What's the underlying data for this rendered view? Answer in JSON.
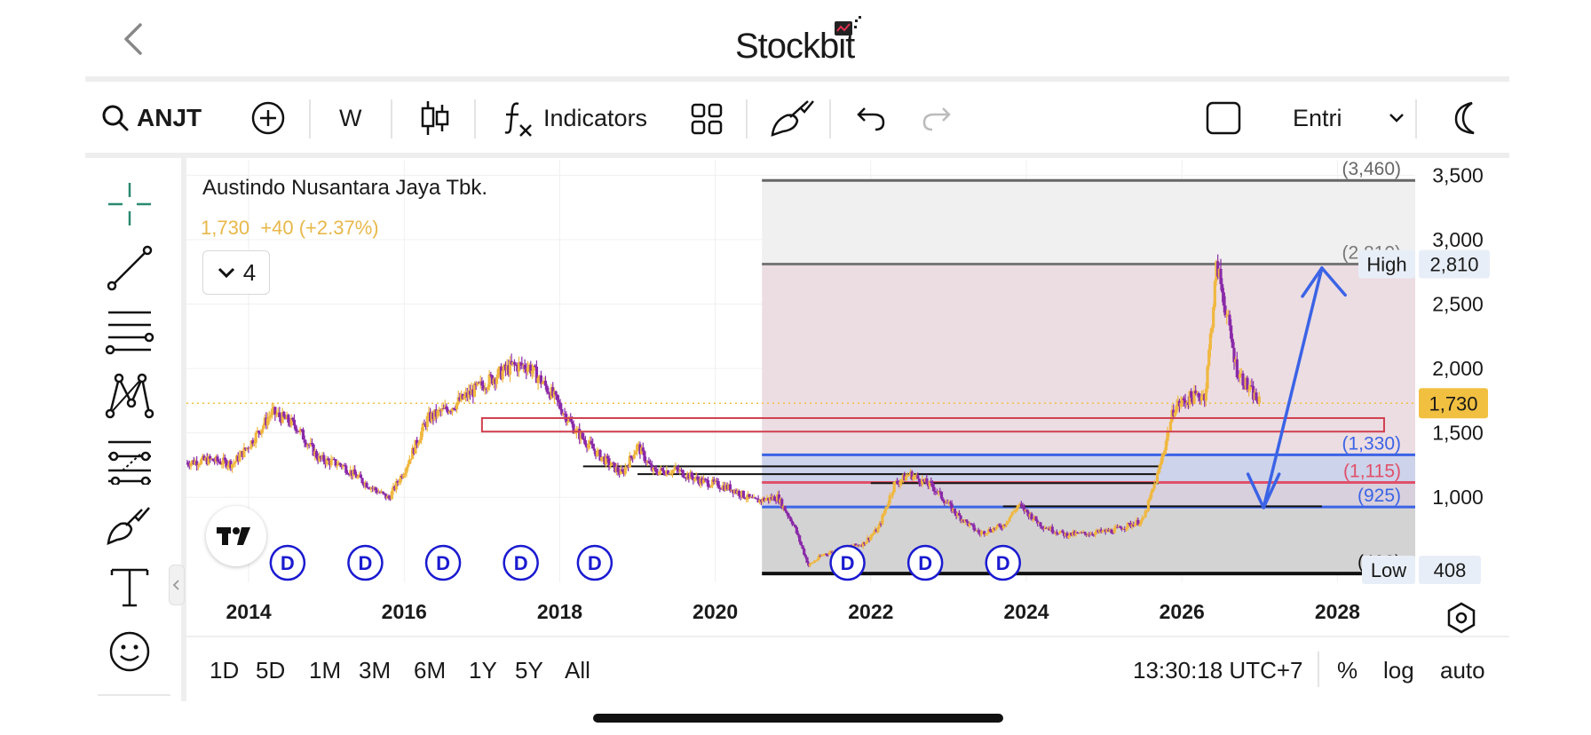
{
  "app": {
    "logo": "Stockbit"
  },
  "toolbar": {
    "symbol": "ANJT",
    "interval": "W",
    "indicators_label": "Indicators",
    "order_label": "Entri"
  },
  "legend": {
    "company": "Austindo Nusantara Jaya Tbk.",
    "price_change": "1,730  +40 (+2.37%)",
    "collapse_count": "4"
  },
  "chart_data": {
    "type": "candlestick",
    "x_axis": {
      "ticks": [
        "2014",
        "2016",
        "2018",
        "2020",
        "2022",
        "2024",
        "2026",
        "2028"
      ],
      "range": [
        2013.2,
        2029.0
      ]
    },
    "y_axis": {
      "ticks": [
        "3,500",
        "3,000",
        "2,500",
        "2,000",
        "1,500",
        "1,000"
      ],
      "range": [
        340,
        3620
      ],
      "scale": "linear"
    },
    "current_price": {
      "value": 1730,
      "label": "1,730",
      "color": "#f2c040"
    },
    "high_label": {
      "text": "High",
      "value": 2810,
      "label": "2,810"
    },
    "low_label": {
      "text": "Low",
      "value": 408,
      "label": "408"
    },
    "fib_levels": [
      {
        "value": 3460,
        "label": "(3,460)",
        "color": "#666666"
      },
      {
        "value": 2810,
        "label": "(2,810)",
        "color": "#777777"
      },
      {
        "value": 1330,
        "label": "(1,330)",
        "color": "#3b63e6"
      },
      {
        "value": 1115,
        "label": "(1,115)",
        "color": "#e0506a"
      },
      {
        "value": 925,
        "label": "(925)",
        "color": "#3b63e6"
      },
      {
        "value": 408,
        "label": "(408)",
        "color": "#111111"
      }
    ],
    "dividends": [
      2014.5,
      2015.5,
      2016.5,
      2017.5,
      2018.45,
      2021.7,
      2022.7,
      2023.7
    ],
    "dividend_label": "D",
    "price_series_approx": [
      [
        2013.2,
        1270
      ],
      [
        2013.5,
        1290
      ],
      [
        2013.8,
        1260
      ],
      [
        2014.0,
        1400
      ],
      [
        2014.3,
        1660
      ],
      [
        2014.6,
        1560
      ],
      [
        2014.9,
        1300
      ],
      [
        2015.2,
        1250
      ],
      [
        2015.5,
        1110
      ],
      [
        2015.8,
        990
      ],
      [
        2016.0,
        1210
      ],
      [
        2016.3,
        1610
      ],
      [
        2016.6,
        1700
      ],
      [
        2016.9,
        1830
      ],
      [
        2017.2,
        1950
      ],
      [
        2017.4,
        2020
      ],
      [
        2017.6,
        2020
      ],
      [
        2017.9,
        1800
      ],
      [
        2018.2,
        1520
      ],
      [
        2018.5,
        1330
      ],
      [
        2018.8,
        1180
      ],
      [
        2019.0,
        1400
      ],
      [
        2019.2,
        1200
      ],
      [
        2019.5,
        1210
      ],
      [
        2019.8,
        1130
      ],
      [
        2020.2,
        1070
      ],
      [
        2020.5,
        970
      ],
      [
        2020.8,
        1000
      ],
      [
        2021.0,
        800
      ],
      [
        2021.2,
        470
      ],
      [
        2021.4,
        560
      ],
      [
        2021.6,
        590
      ],
      [
        2021.9,
        640
      ],
      [
        2022.1,
        760
      ],
      [
        2022.3,
        1100
      ],
      [
        2022.5,
        1180
      ],
      [
        2022.8,
        1080
      ],
      [
        2023.1,
        870
      ],
      [
        2023.4,
        720
      ],
      [
        2023.7,
        780
      ],
      [
        2023.9,
        940
      ],
      [
        2024.2,
        780
      ],
      [
        2024.5,
        710
      ],
      [
        2024.8,
        720
      ],
      [
        2025.1,
        740
      ],
      [
        2025.3,
        780
      ],
      [
        2025.5,
        820
      ],
      [
        2025.7,
        1200
      ],
      [
        2025.9,
        1700
      ],
      [
        2026.1,
        1770
      ],
      [
        2026.3,
        1800
      ],
      [
        2026.45,
        2810
      ],
      [
        2026.55,
        2500
      ],
      [
        2026.7,
        2000
      ],
      [
        2026.85,
        1850
      ],
      [
        2027.0,
        1730
      ]
    ]
  },
  "bottombar": {
    "periods": [
      "1D",
      "5D",
      "1M",
      "3M",
      "6M",
      "1Y",
      "5Y",
      "All"
    ],
    "time": "13:30:18 UTC+7",
    "percent": "%",
    "log": "log",
    "auto": "auto"
  }
}
